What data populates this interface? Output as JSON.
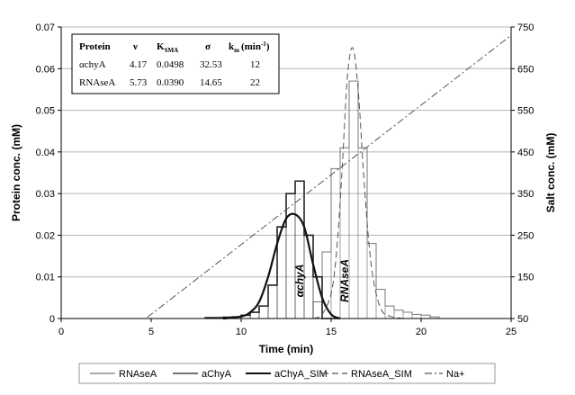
{
  "chart_data": {
    "type": "line",
    "xlabel": "Time (min)",
    "ylabel": "Protein conc. (mM)",
    "y2label": "Salt conc. (mM)",
    "xlim": [
      0,
      25
    ],
    "ylim": [
      0,
      0.07
    ],
    "y2lim": [
      50,
      750
    ],
    "xticks": [
      "0",
      "5",
      "10",
      "15",
      "20",
      "25"
    ],
    "yticks": [
      "0",
      "0.01",
      "0.02",
      "0.03",
      "0.04",
      "0.05",
      "0.06",
      "0.07"
    ],
    "y2ticks": [
      "50",
      "150",
      "250",
      "350",
      "450",
      "550",
      "650",
      "750"
    ],
    "grid": "horizontal",
    "legend_position": "bottom",
    "annotations": [
      {
        "text": "αchyA",
        "x": 13.4,
        "y": 0.008
      },
      {
        "text": "RNAseA",
        "x": 15.8,
        "y": 0.005
      }
    ],
    "series": [
      {
        "name": "RNAseA",
        "style": "step",
        "color": "#777777",
        "x": [
          14.0,
          14.5,
          15.0,
          15.5,
          16.0,
          16.5,
          17.0,
          17.5,
          18.0,
          18.5,
          19.0,
          19.5,
          20.0,
          20.5,
          21.0
        ],
        "values": [
          0.004,
          0.016,
          0.036,
          0.041,
          0.057,
          0.041,
          0.018,
          0.007,
          0.003,
          0.002,
          0.0015,
          0.001,
          0.0008,
          0.0004,
          0.0
        ]
      },
      {
        "name": "aChyA",
        "style": "step",
        "color": "#222222",
        "x": [
          8.0,
          8.5,
          9.0,
          9.5,
          10.0,
          10.5,
          11.0,
          11.5,
          12.0,
          12.5,
          13.0,
          13.5,
          14.0,
          14.5,
          15.0
        ],
        "values": [
          0.0002,
          0.0002,
          0.0003,
          0.0004,
          0.0008,
          0.0015,
          0.003,
          0.008,
          0.022,
          0.03,
          0.033,
          0.02,
          0.01,
          0.0,
          0.0
        ]
      },
      {
        "name": "aChyA_SIM",
        "style": "smooth",
        "color": "#111111",
        "x": [
          9.0,
          10.0,
          10.5,
          11.0,
          11.5,
          12.0,
          12.5,
          13.0,
          13.5,
          14.0,
          14.5,
          15.0,
          15.5
        ],
        "values": [
          0.0,
          0.0005,
          0.0015,
          0.004,
          0.01,
          0.018,
          0.024,
          0.025,
          0.022,
          0.013,
          0.005,
          0.001,
          0.0
        ]
      },
      {
        "name": "RNAseA_SIM",
        "style": "dashed",
        "color": "#555555",
        "x": [
          14.0,
          14.5,
          15.0,
          15.3,
          15.6,
          15.9,
          16.2,
          16.5,
          16.8,
          17.1,
          17.4,
          17.8,
          18.3,
          19.0
        ],
        "values": [
          0.0,
          0.001,
          0.006,
          0.016,
          0.035,
          0.058,
          0.065,
          0.055,
          0.035,
          0.018,
          0.008,
          0.002,
          0.0005,
          0.0
        ]
      },
      {
        "name": "Na+",
        "style": "dashdot",
        "color": "#555555",
        "axis": "right",
        "x": [
          0,
          4.7,
          25
        ],
        "values": [
          50,
          50,
          730
        ]
      }
    ],
    "table": {
      "headers": [
        "Protein",
        "ν",
        "K",
        "SMA",
        "σ",
        "k",
        "m",
        "(min",
        "-1",
        ")"
      ],
      "rows": [
        [
          "αchyA",
          "4.17",
          "0.0498",
          "32.53",
          "12"
        ],
        [
          "RNAseA",
          "5.73",
          "0.0390",
          "14.65",
          "22"
        ]
      ]
    }
  }
}
